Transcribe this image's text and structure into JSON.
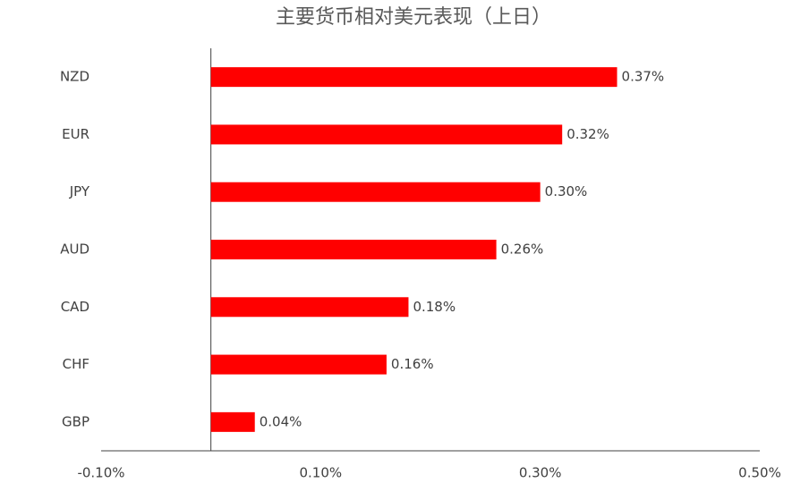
{
  "chart_data": {
    "type": "barh",
    "title": "主要货币相对美元表现（上日）",
    "categories": [
      "NZD",
      "EUR",
      "JPY",
      "AUD",
      "CAD",
      "CHF",
      "GBP"
    ],
    "values": [
      0.37,
      0.32,
      0.3,
      0.26,
      0.18,
      0.16,
      0.04
    ],
    "value_labels": [
      "0.37%",
      "0.32%",
      "0.30%",
      "0.26%",
      "0.18%",
      "0.16%",
      "0.04%"
    ],
    "color": "#ff0000",
    "xlim": [
      -0.1,
      0.5
    ],
    "xticks": [
      {
        "value": -0.1,
        "label": "-0.10%"
      },
      {
        "value": 0.1,
        "label": "0.10%"
      },
      {
        "value": 0.3,
        "label": "0.30%"
      },
      {
        "value": 0.5,
        "label": "0.50%"
      }
    ],
    "grid": false
  }
}
